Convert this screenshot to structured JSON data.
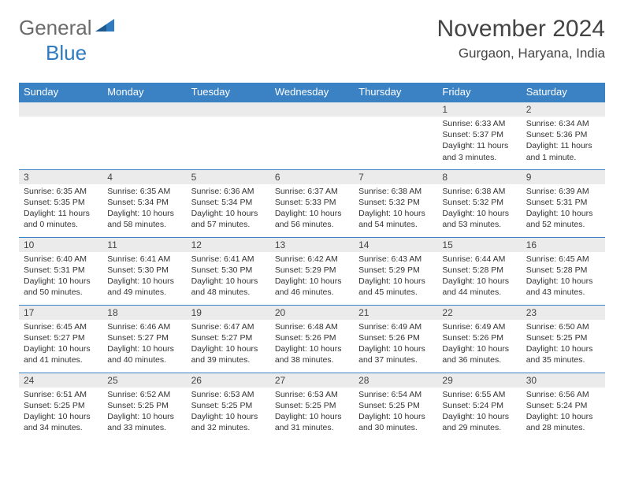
{
  "logo": {
    "text1": "General",
    "text2": "Blue"
  },
  "title": "November 2024",
  "location": "Gurgaon, Haryana, India",
  "colors": {
    "header_bg": "#3b82c4",
    "header_text": "#ffffff",
    "daynum_bg": "#ebebeb",
    "border": "#3b82c4",
    "logo_gray": "#6b6b6b",
    "logo_blue": "#2f7bbf"
  },
  "weekdays": [
    "Sunday",
    "Monday",
    "Tuesday",
    "Wednesday",
    "Thursday",
    "Friday",
    "Saturday"
  ],
  "weeks": [
    [
      null,
      null,
      null,
      null,
      null,
      {
        "n": "1",
        "sunrise": "6:33 AM",
        "sunset": "5:37 PM",
        "daylight": "11 hours and 3 minutes."
      },
      {
        "n": "2",
        "sunrise": "6:34 AM",
        "sunset": "5:36 PM",
        "daylight": "11 hours and 1 minute."
      }
    ],
    [
      {
        "n": "3",
        "sunrise": "6:35 AM",
        "sunset": "5:35 PM",
        "daylight": "11 hours and 0 minutes."
      },
      {
        "n": "4",
        "sunrise": "6:35 AM",
        "sunset": "5:34 PM",
        "daylight": "10 hours and 58 minutes."
      },
      {
        "n": "5",
        "sunrise": "6:36 AM",
        "sunset": "5:34 PM",
        "daylight": "10 hours and 57 minutes."
      },
      {
        "n": "6",
        "sunrise": "6:37 AM",
        "sunset": "5:33 PM",
        "daylight": "10 hours and 56 minutes."
      },
      {
        "n": "7",
        "sunrise": "6:38 AM",
        "sunset": "5:32 PM",
        "daylight": "10 hours and 54 minutes."
      },
      {
        "n": "8",
        "sunrise": "6:38 AM",
        "sunset": "5:32 PM",
        "daylight": "10 hours and 53 minutes."
      },
      {
        "n": "9",
        "sunrise": "6:39 AM",
        "sunset": "5:31 PM",
        "daylight": "10 hours and 52 minutes."
      }
    ],
    [
      {
        "n": "10",
        "sunrise": "6:40 AM",
        "sunset": "5:31 PM",
        "daylight": "10 hours and 50 minutes."
      },
      {
        "n": "11",
        "sunrise": "6:41 AM",
        "sunset": "5:30 PM",
        "daylight": "10 hours and 49 minutes."
      },
      {
        "n": "12",
        "sunrise": "6:41 AM",
        "sunset": "5:30 PM",
        "daylight": "10 hours and 48 minutes."
      },
      {
        "n": "13",
        "sunrise": "6:42 AM",
        "sunset": "5:29 PM",
        "daylight": "10 hours and 46 minutes."
      },
      {
        "n": "14",
        "sunrise": "6:43 AM",
        "sunset": "5:29 PM",
        "daylight": "10 hours and 45 minutes."
      },
      {
        "n": "15",
        "sunrise": "6:44 AM",
        "sunset": "5:28 PM",
        "daylight": "10 hours and 44 minutes."
      },
      {
        "n": "16",
        "sunrise": "6:45 AM",
        "sunset": "5:28 PM",
        "daylight": "10 hours and 43 minutes."
      }
    ],
    [
      {
        "n": "17",
        "sunrise": "6:45 AM",
        "sunset": "5:27 PM",
        "daylight": "10 hours and 41 minutes."
      },
      {
        "n": "18",
        "sunrise": "6:46 AM",
        "sunset": "5:27 PM",
        "daylight": "10 hours and 40 minutes."
      },
      {
        "n": "19",
        "sunrise": "6:47 AM",
        "sunset": "5:27 PM",
        "daylight": "10 hours and 39 minutes."
      },
      {
        "n": "20",
        "sunrise": "6:48 AM",
        "sunset": "5:26 PM",
        "daylight": "10 hours and 38 minutes."
      },
      {
        "n": "21",
        "sunrise": "6:49 AM",
        "sunset": "5:26 PM",
        "daylight": "10 hours and 37 minutes."
      },
      {
        "n": "22",
        "sunrise": "6:49 AM",
        "sunset": "5:26 PM",
        "daylight": "10 hours and 36 minutes."
      },
      {
        "n": "23",
        "sunrise": "6:50 AM",
        "sunset": "5:25 PM",
        "daylight": "10 hours and 35 minutes."
      }
    ],
    [
      {
        "n": "24",
        "sunrise": "6:51 AM",
        "sunset": "5:25 PM",
        "daylight": "10 hours and 34 minutes."
      },
      {
        "n": "25",
        "sunrise": "6:52 AM",
        "sunset": "5:25 PM",
        "daylight": "10 hours and 33 minutes."
      },
      {
        "n": "26",
        "sunrise": "6:53 AM",
        "sunset": "5:25 PM",
        "daylight": "10 hours and 32 minutes."
      },
      {
        "n": "27",
        "sunrise": "6:53 AM",
        "sunset": "5:25 PM",
        "daylight": "10 hours and 31 minutes."
      },
      {
        "n": "28",
        "sunrise": "6:54 AM",
        "sunset": "5:25 PM",
        "daylight": "10 hours and 30 minutes."
      },
      {
        "n": "29",
        "sunrise": "6:55 AM",
        "sunset": "5:24 PM",
        "daylight": "10 hours and 29 minutes."
      },
      {
        "n": "30",
        "sunrise": "6:56 AM",
        "sunset": "5:24 PM",
        "daylight": "10 hours and 28 minutes."
      }
    ]
  ],
  "labels": {
    "sunrise": "Sunrise: ",
    "sunset": "Sunset: ",
    "daylight": "Daylight: "
  }
}
